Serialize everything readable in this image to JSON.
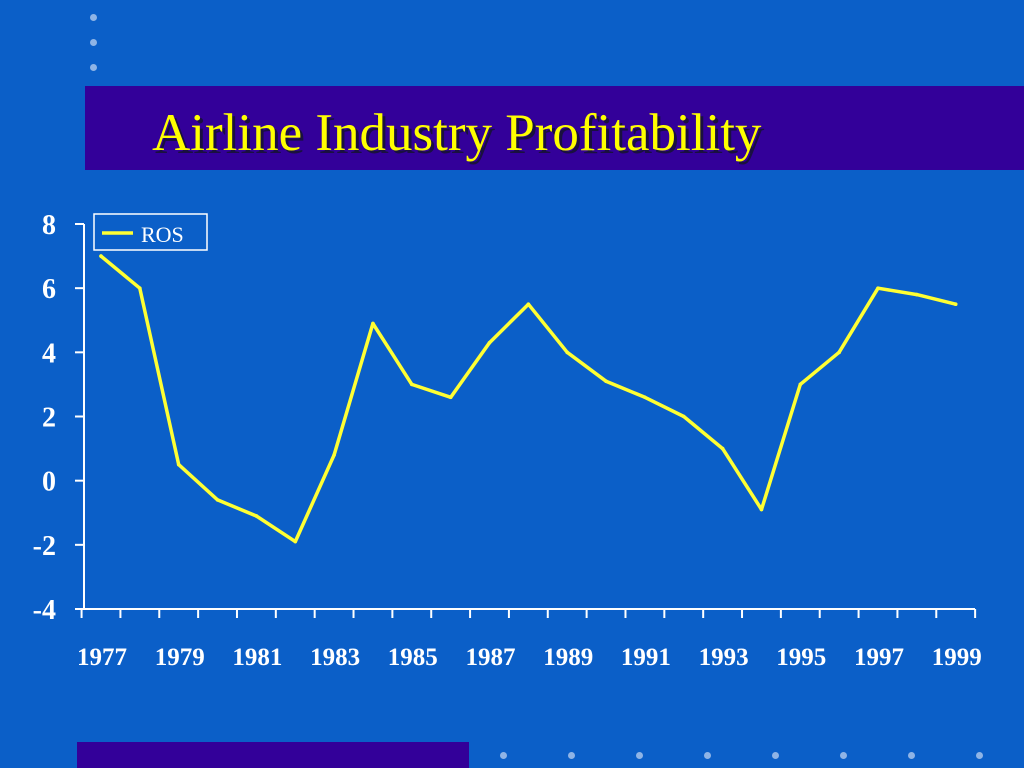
{
  "slide": {
    "title": "Airline Industry Profitability",
    "colors": {
      "background": "#0b5fc8",
      "band": "#330099",
      "title": "#ffff00",
      "line": "#ffff33",
      "axis": "#ffffff",
      "dots": "#8fb4e6"
    }
  },
  "chart_data": {
    "type": "line",
    "title": "",
    "xlabel": "",
    "ylabel": "",
    "x": [
      1977,
      1978,
      1979,
      1980,
      1981,
      1982,
      1983,
      1984,
      1985,
      1986,
      1987,
      1988,
      1989,
      1990,
      1991,
      1992,
      1993,
      1994,
      1995,
      1996,
      1997,
      1998,
      1999
    ],
    "x_tick_labels": [
      "1977",
      "1979",
      "1981",
      "1983",
      "1985",
      "1987",
      "1989",
      "1991",
      "1993",
      "1995",
      "1997",
      "1999"
    ],
    "y_ticks": [
      "8",
      "6",
      "4",
      "2",
      "0",
      "-2",
      "-4"
    ],
    "ylim": [
      -4,
      8
    ],
    "grid": false,
    "legend_position": "top-left",
    "series": [
      {
        "name": "ROS",
        "color": "#ffff33",
        "values": [
          7.0,
          6.0,
          0.5,
          -0.6,
          -1.1,
          -1.9,
          0.8,
          4.9,
          3.0,
          2.6,
          4.3,
          5.5,
          4.0,
          3.1,
          2.6,
          2.0,
          1.0,
          -0.9,
          3.0,
          4.0,
          6.0,
          5.8,
          5.5
        ]
      }
    ]
  }
}
